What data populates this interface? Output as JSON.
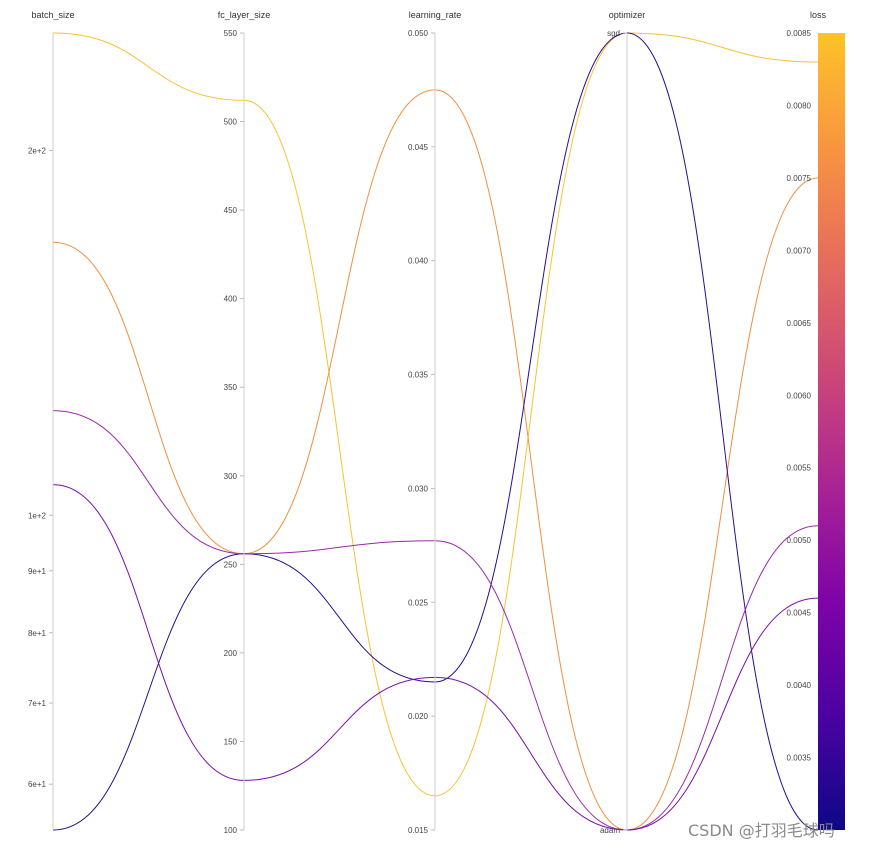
{
  "chart_data": {
    "type": "parallel-coordinates",
    "axes": [
      {
        "key": "batch_size",
        "title": "batch_size",
        "scale": "log",
        "range": [
          55,
          250
        ],
        "ticks": [
          {
            "value": 200,
            "label": "2e+2"
          },
          {
            "value": 100,
            "label": "1e+2"
          },
          {
            "value": 90,
            "label": "9e+1"
          },
          {
            "value": 80,
            "label": "8e+1"
          },
          {
            "value": 70,
            "label": "7e+1"
          },
          {
            "value": 60,
            "label": "6e+1"
          }
        ]
      },
      {
        "key": "fc_layer_size",
        "title": "fc_layer_size",
        "scale": "linear",
        "range": [
          100,
          550
        ],
        "ticks": [
          {
            "value": 550,
            "label": "550"
          },
          {
            "value": 500,
            "label": "500"
          },
          {
            "value": 450,
            "label": "450"
          },
          {
            "value": 400,
            "label": "400"
          },
          {
            "value": 350,
            "label": "350"
          },
          {
            "value": 300,
            "label": "300"
          },
          {
            "value": 250,
            "label": "250"
          },
          {
            "value": 200,
            "label": "200"
          },
          {
            "value": 150,
            "label": "150"
          },
          {
            "value": 100,
            "label": "100"
          }
        ]
      },
      {
        "key": "learning_rate",
        "title": "learning_rate",
        "scale": "linear",
        "range": [
          0.015,
          0.05
        ],
        "ticks": [
          {
            "value": 0.05,
            "label": "0.050"
          },
          {
            "value": 0.045,
            "label": "0.045"
          },
          {
            "value": 0.04,
            "label": "0.040"
          },
          {
            "value": 0.035,
            "label": "0.035"
          },
          {
            "value": 0.03,
            "label": "0.030"
          },
          {
            "value": 0.025,
            "label": "0.025"
          },
          {
            "value": 0.02,
            "label": "0.020"
          },
          {
            "value": 0.015,
            "label": "0.015"
          }
        ]
      },
      {
        "key": "optimizer",
        "title": "optimizer",
        "scale": "categorical",
        "categories": [
          "adam",
          "sgd"
        ],
        "ticks": [
          {
            "value": "sgd",
            "label": "sgd"
          },
          {
            "value": "adam",
            "label": "adam"
          }
        ]
      },
      {
        "key": "loss",
        "title": "loss",
        "scale": "linear",
        "range": [
          0.003,
          0.0085
        ],
        "ticks": [
          {
            "value": 0.0085,
            "label": "0.0085"
          },
          {
            "value": 0.008,
            "label": "0.0080"
          },
          {
            "value": 0.0075,
            "label": "0.0075"
          },
          {
            "value": 0.007,
            "label": "0.0070"
          },
          {
            "value": 0.0065,
            "label": "0.0065"
          },
          {
            "value": 0.006,
            "label": "0.0060"
          },
          {
            "value": 0.0055,
            "label": "0.0055"
          },
          {
            "value": 0.005,
            "label": "0.0050"
          },
          {
            "value": 0.0045,
            "label": "0.0045"
          },
          {
            "value": 0.004,
            "label": "0.0040"
          },
          {
            "value": 0.0035,
            "label": "0.0035"
          }
        ]
      }
    ],
    "runs": [
      {
        "batch_size": 250,
        "fc_layer_size": 512,
        "learning_rate": 0.0165,
        "optimizer": "sgd",
        "loss": 0.0083,
        "color": "#f9c134"
      },
      {
        "batch_size": 168,
        "fc_layer_size": 256,
        "learning_rate": 0.0475,
        "optimizer": "adam",
        "loss": 0.0075,
        "color": "#f08f3f"
      },
      {
        "batch_size": 55,
        "fc_layer_size": 256,
        "learning_rate": 0.0215,
        "optimizer": "sgd",
        "loss": 0.003,
        "color": "#2a0d8c"
      },
      {
        "batch_size": 122,
        "fc_layer_size": 256,
        "learning_rate": 0.0277,
        "optimizer": "adam",
        "loss": 0.0051,
        "color": "#9a2aa8"
      },
      {
        "batch_size": 106,
        "fc_layer_size": 128,
        "learning_rate": 0.0217,
        "optimizer": "adam",
        "loss": 0.0046,
        "color": "#7a10a6"
      }
    ],
    "colorbar": {
      "min": 0.003,
      "max": 0.0085,
      "stops": [
        "#0d0887",
        "#4c02a1",
        "#7e03a8",
        "#a92395",
        "#cc4778",
        "#e66c5c",
        "#f89540",
        "#fdc328"
      ]
    },
    "grid": false
  },
  "watermark": "CSDN @打羽毛球吗️"
}
